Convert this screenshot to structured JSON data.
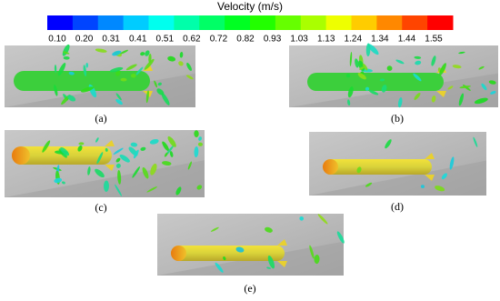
{
  "colorbar": {
    "title": "Velocity (m/s)",
    "ticks": [
      "0.10",
      "0.20",
      "0.31",
      "0.41",
      "0.51",
      "0.62",
      "0.72",
      "0.82",
      "0.93",
      "1.03",
      "1.13",
      "1.24",
      "1.34",
      "1.44",
      "1.55"
    ]
  },
  "panels": [
    {
      "label": "(a)"
    },
    {
      "label": "(b)"
    },
    {
      "label": "(c)"
    },
    {
      "label": "(d)"
    },
    {
      "label": "(e)"
    }
  ]
}
